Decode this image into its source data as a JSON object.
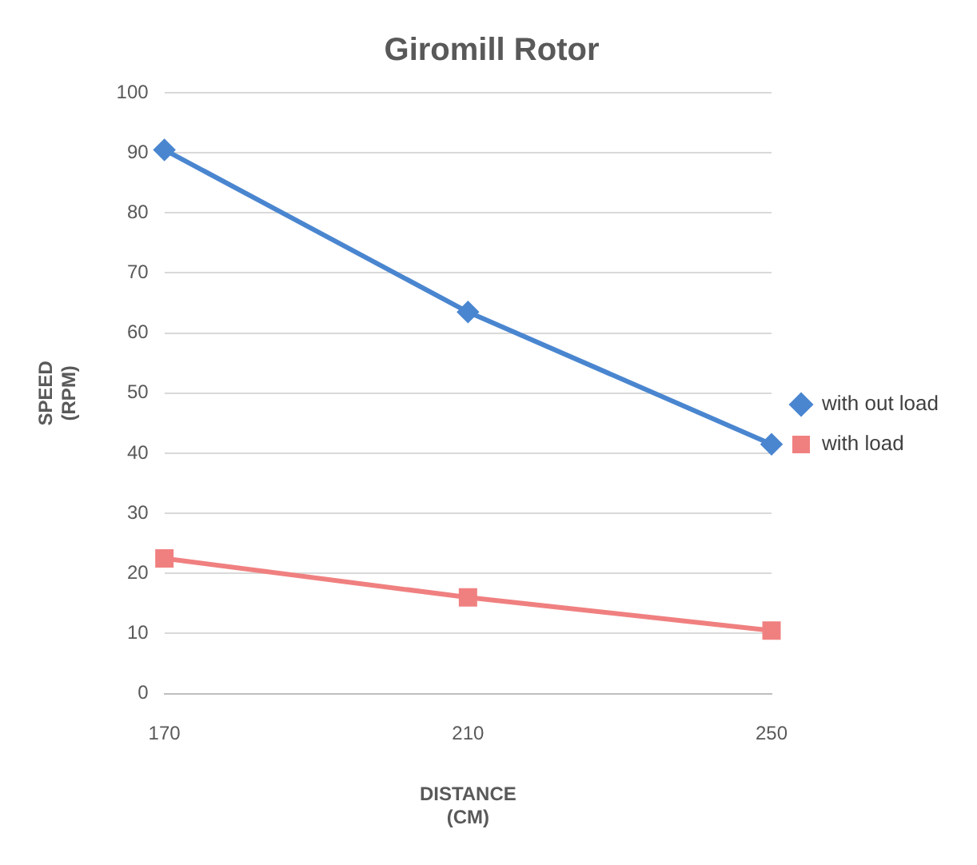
{
  "chart_data": {
    "type": "line",
    "title": "Giromill Rotor",
    "xlabel": "DISTANCE\n(CM)",
    "ylabel": "SPEED\n(RPM)",
    "categories": [
      "170",
      "210",
      "250"
    ],
    "series": [
      {
        "name": "with out load",
        "color": "#4a86d0",
        "marker": "diamond",
        "values": [
          90.5,
          63.5,
          41.5
        ]
      },
      {
        "name": "with load",
        "color": "#f08080",
        "marker": "square",
        "values": [
          22.5,
          16,
          10.5
        ]
      }
    ],
    "ylim": [
      0,
      100
    ],
    "yticks": [
      0,
      10,
      20,
      30,
      40,
      50,
      60,
      70,
      80,
      90,
      100
    ],
    "grid": "y",
    "legend": "right"
  }
}
